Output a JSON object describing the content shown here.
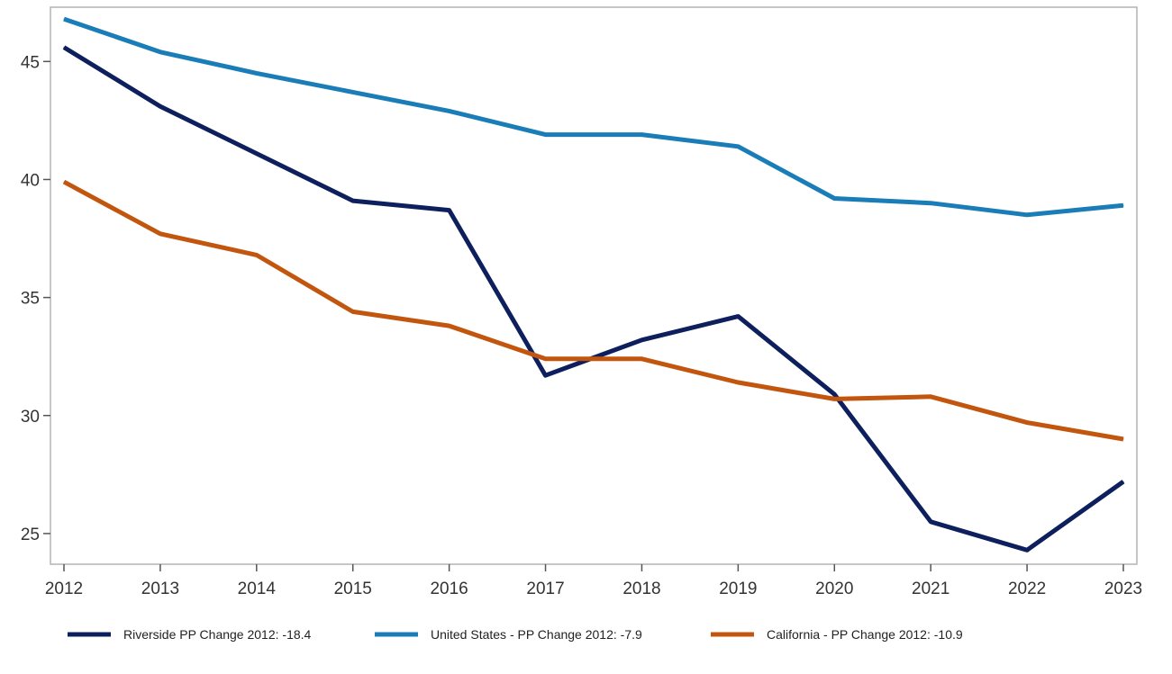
{
  "chart_data": {
    "type": "line",
    "title": "",
    "xlabel": "",
    "ylabel": "",
    "x": [
      2012,
      2013,
      2014,
      2015,
      2016,
      2017,
      2018,
      2019,
      2020,
      2021,
      2022,
      2023
    ],
    "xlim": [
      2012,
      2023
    ],
    "ylim": [
      23.7,
      47.3
    ],
    "yticks": [
      25,
      30,
      35,
      40,
      45
    ],
    "grid": false,
    "legend_position": "bottom",
    "series": [
      {
        "name": "Riverside PP Change 2012: -18.4",
        "color": "#0d1f5c",
        "values": [
          45.6,
          43.1,
          41.1,
          39.1,
          38.7,
          31.7,
          33.2,
          34.2,
          30.9,
          25.5,
          24.3,
          27.2
        ]
      },
      {
        "name": "United States - PP Change 2012: -7.9",
        "color": "#1a7db8",
        "values": [
          46.8,
          45.4,
          44.5,
          43.7,
          42.9,
          41.9,
          41.9,
          41.4,
          39.2,
          39.0,
          38.5,
          38.9
        ]
      },
      {
        "name": "California - PP Change 2012: -10.9",
        "color": "#c2560f",
        "values": [
          39.9,
          37.7,
          36.8,
          34.4,
          33.8,
          32.4,
          32.4,
          31.4,
          30.7,
          30.8,
          29.7,
          29.0
        ]
      }
    ]
  }
}
